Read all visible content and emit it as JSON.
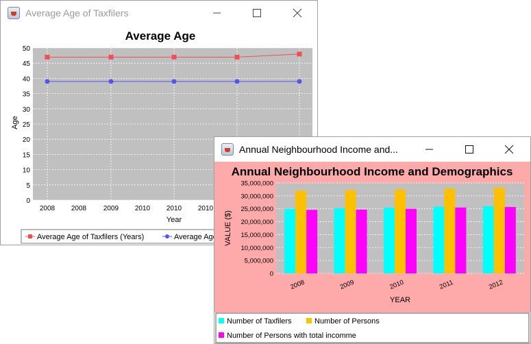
{
  "window_age": {
    "title": "Average Age of Taxfilers",
    "chart_data": {
      "type": "line",
      "title": "Average Age",
      "xlabel": "Year",
      "ylabel": "Age",
      "ylim": [
        0,
        50
      ],
      "yticks": [
        "0",
        "5",
        "10",
        "15",
        "20",
        "25",
        "30",
        "35",
        "40",
        "45",
        "50"
      ],
      "xticks": [
        "2008",
        "2008",
        "2009",
        "2010",
        "2010",
        "2010"
      ],
      "categories": [
        "2008",
        "2009",
        "2010",
        "2011",
        "2012"
      ],
      "series": [
        {
          "name": "Average Age of Taxfilers (Years)",
          "color": "#ee5050",
          "marker": "square",
          "values": [
            47,
            47,
            47,
            47,
            48
          ]
        },
        {
          "name": "Average Age",
          "color": "#5555ee",
          "marker": "circle",
          "values": [
            39,
            39,
            39,
            39,
            39
          ]
        }
      ],
      "plot_background": "#c0c0c0",
      "grid": true,
      "legend": "bottom"
    }
  },
  "window_income": {
    "title": "Annual Neighbourhood Income and...",
    "chart_data": {
      "type": "bar",
      "title": "Annual Neighbourhood Income and Demographics",
      "xlabel": "YEAR",
      "ylabel": "VALUE ($)",
      "ylim": [
        0,
        35000000
      ],
      "yticks": [
        "0",
        "5,000,000",
        "10,000,000",
        "15,000,000",
        "20,000,000",
        "25,000,000",
        "30,000,000",
        "35,000,000"
      ],
      "categories": [
        "2008",
        "2009",
        "2010",
        "2011",
        "2012"
      ],
      "series": [
        {
          "name": "Number of Taxfilers",
          "color": "#00ffff",
          "values": [
            25000000,
            25200000,
            25400000,
            25800000,
            26000000
          ]
        },
        {
          "name": "Number of Persons",
          "color": "#ffc000",
          "values": [
            32000000,
            32200000,
            32400000,
            32800000,
            33200000
          ]
        },
        {
          "name": "Number of Persons with total incomme",
          "color": "#ff00ff",
          "values": [
            24600000,
            24700000,
            25000000,
            25500000,
            25700000
          ]
        }
      ],
      "background": "#ffaaaa",
      "plot_background": "#c0c0c0",
      "grid": true,
      "legend": "bottom"
    }
  }
}
